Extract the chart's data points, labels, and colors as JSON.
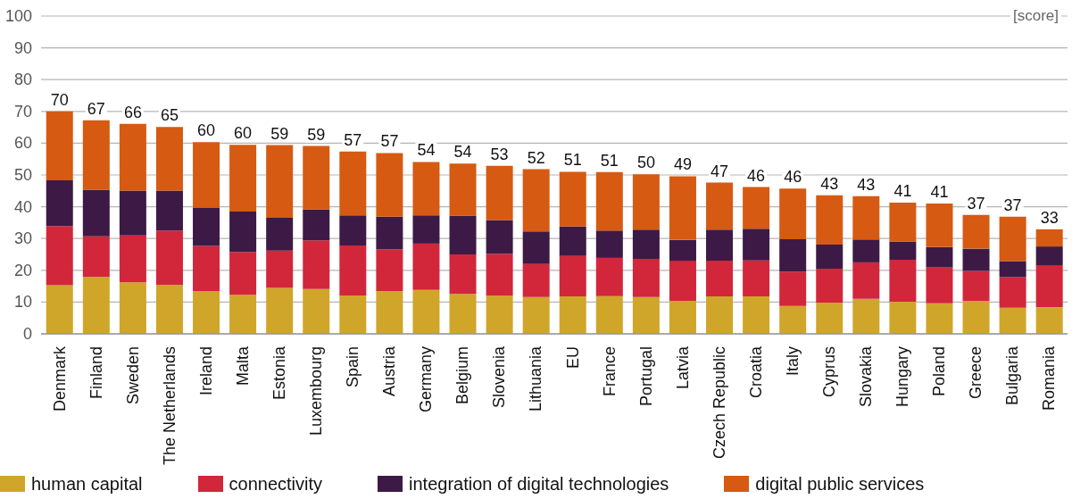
{
  "chart_data": {
    "type": "bar",
    "stacked": true,
    "ylabel": "[score]",
    "categories": [
      "Denmark",
      "Finland",
      "Sweden",
      "The Netherlands",
      "Ireland",
      "Malta",
      "Estonia",
      "Luxembourg",
      "Spain",
      "Austria",
      "Germany",
      "Belgium",
      "Slovenia",
      "Lithuania",
      "EU",
      "France",
      "Portugal",
      "Latvia",
      "Czech Republic",
      "Croatia",
      "Italy",
      "Cyprus",
      "Slovakia",
      "Hungary",
      "Poland",
      "Greece",
      "Bulgaria",
      "Romania"
    ],
    "series": [
      {
        "name": "human capital",
        "color": "#cfa62a",
        "values": [
          15.3,
          17.9,
          16.2,
          15.4,
          13.5,
          12.3,
          14.5,
          14.1,
          12.1,
          13.5,
          13.8,
          12.6,
          12.0,
          11.6,
          11.8,
          11.9,
          11.6,
          10.4,
          11.8,
          11.8,
          8.8,
          9.8,
          11.0,
          10.1,
          9.6,
          10.4,
          8.2,
          8.4
        ]
      },
      {
        "name": "connectivity",
        "color": "#d2263b",
        "values": [
          18.6,
          12.8,
          14.8,
          17.1,
          14.2,
          13.5,
          11.7,
          15.3,
          15.7,
          13.1,
          14.6,
          12.4,
          13.2,
          10.4,
          12.7,
          12.0,
          12.0,
          12.6,
          11.2,
          11.3,
          10.7,
          10.7,
          11.5,
          13.2,
          11.3,
          9.4,
          9.6,
          13.2
        ]
      },
      {
        "name": "integration of digital technologies",
        "color": "#3c1a45",
        "values": [
          14.4,
          14.7,
          14.1,
          12.6,
          11.9,
          12.7,
          10.3,
          9.8,
          9.5,
          10.3,
          8.9,
          12.2,
          10.6,
          10.2,
          9.3,
          8.6,
          9.2,
          6.6,
          9.8,
          10.0,
          10.3,
          7.6,
          7.2,
          5.8,
          6.4,
          7.0,
          5.1,
          5.9
        ]
      },
      {
        "name": "digital public services",
        "color": "#d65a12",
        "values": [
          21.7,
          21.8,
          21.0,
          20.0,
          20.7,
          21.0,
          22.9,
          19.9,
          20.1,
          20.0,
          16.8,
          16.4,
          17.1,
          19.6,
          17.2,
          18.4,
          17.4,
          20.0,
          14.8,
          13.1,
          15.9,
          15.5,
          13.6,
          12.2,
          13.7,
          10.6,
          14.0,
          5.4
        ]
      }
    ],
    "totals": [
      "70",
      "67",
      "66",
      "65",
      "60",
      "60",
      "59",
      "59",
      "57",
      "57",
      "54",
      "54",
      "53",
      "52",
      "51",
      "51",
      "50",
      "49",
      "47",
      "46",
      "46",
      "43",
      "43",
      "41",
      "41",
      "37",
      "37",
      "33"
    ],
    "ylim": [
      0,
      100
    ],
    "yticks": [
      0,
      10,
      20,
      30,
      40,
      50,
      60,
      70,
      80,
      90,
      100
    ],
    "grid": "y",
    "legend": "bottom"
  }
}
